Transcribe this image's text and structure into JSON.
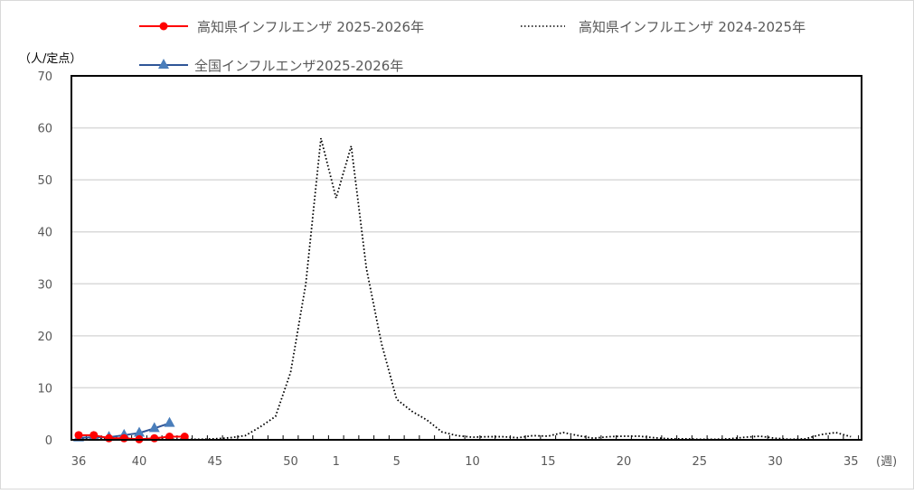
{
  "chart_data": {
    "type": "line",
    "title": "",
    "ylabel": "（人/定点）",
    "xlabel": "(週)",
    "ylim": [
      0,
      70
    ],
    "yticks": [
      0,
      10,
      20,
      30,
      40,
      50,
      60,
      70
    ],
    "grid": true,
    "legend_position": "top",
    "x": [
      36,
      37,
      38,
      39,
      40,
      41,
      42,
      43,
      44,
      45,
      46,
      47,
      48,
      49,
      50,
      51,
      52,
      1,
      2,
      3,
      4,
      5,
      6,
      7,
      8,
      9,
      10,
      11,
      12,
      13,
      14,
      15,
      16,
      17,
      18,
      19,
      20,
      21,
      22,
      23,
      24,
      25,
      26,
      27,
      28,
      29,
      30,
      31,
      32,
      33,
      34,
      35
    ],
    "xtick_labels": [
      "36",
      "40",
      "45",
      "50",
      "1",
      "5",
      "10",
      "15",
      "20",
      "25",
      "30",
      "35"
    ],
    "series": [
      {
        "name": "高知県インフルエンザ 2025-2026年",
        "color": "#ff0000",
        "style": "solid",
        "marker": "circle",
        "values": [
          0.9,
          0.9,
          0.3,
          0.3,
          0.1,
          0.3,
          0.6,
          0.6
        ]
      },
      {
        "name": "全国インフルエンザ2025-2026年",
        "color": "#2f5597",
        "marker_color": "#4a7ebb",
        "style": "solid",
        "marker": "triangle",
        "values": [
          0.4,
          0.5,
          0.5,
          0.9,
          1.3,
          2.2,
          3.2
        ]
      },
      {
        "name": "高知県インフルエンザ 2024-2025年",
        "color": "#000000",
        "style": "dotted",
        "marker": "none",
        "values": [
          0.3,
          0.2,
          0.2,
          0.1,
          0.1,
          0.2,
          0.1,
          0.1,
          0.1,
          0.2,
          0.4,
          0.8,
          2.5,
          4.5,
          13.0,
          30.0,
          58.0,
          46.5,
          56.5,
          33.0,
          18.5,
          7.8,
          5.5,
          3.8,
          1.5,
          0.8,
          0.5,
          0.6,
          0.6,
          0.4,
          0.8,
          0.7,
          1.4,
          0.8,
          0.3,
          0.6,
          0.7,
          0.7,
          0.4,
          0.2,
          0.2,
          0.1,
          0.1,
          0.2,
          0.5,
          0.7,
          0.3,
          0.1,
          0.2,
          1.0,
          1.4,
          0.6
        ]
      }
    ]
  },
  "legend": {
    "item_kochi_2025": "高知県インフルエンザ 2025-2026年",
    "item_kochi_2024": "高知県インフルエンザ 2024-2025年",
    "item_national_2025": "全国インフルエンザ2025-2026年"
  },
  "axes": {
    "y_unit": "（人/定点）",
    "x_unit": "(週)"
  }
}
